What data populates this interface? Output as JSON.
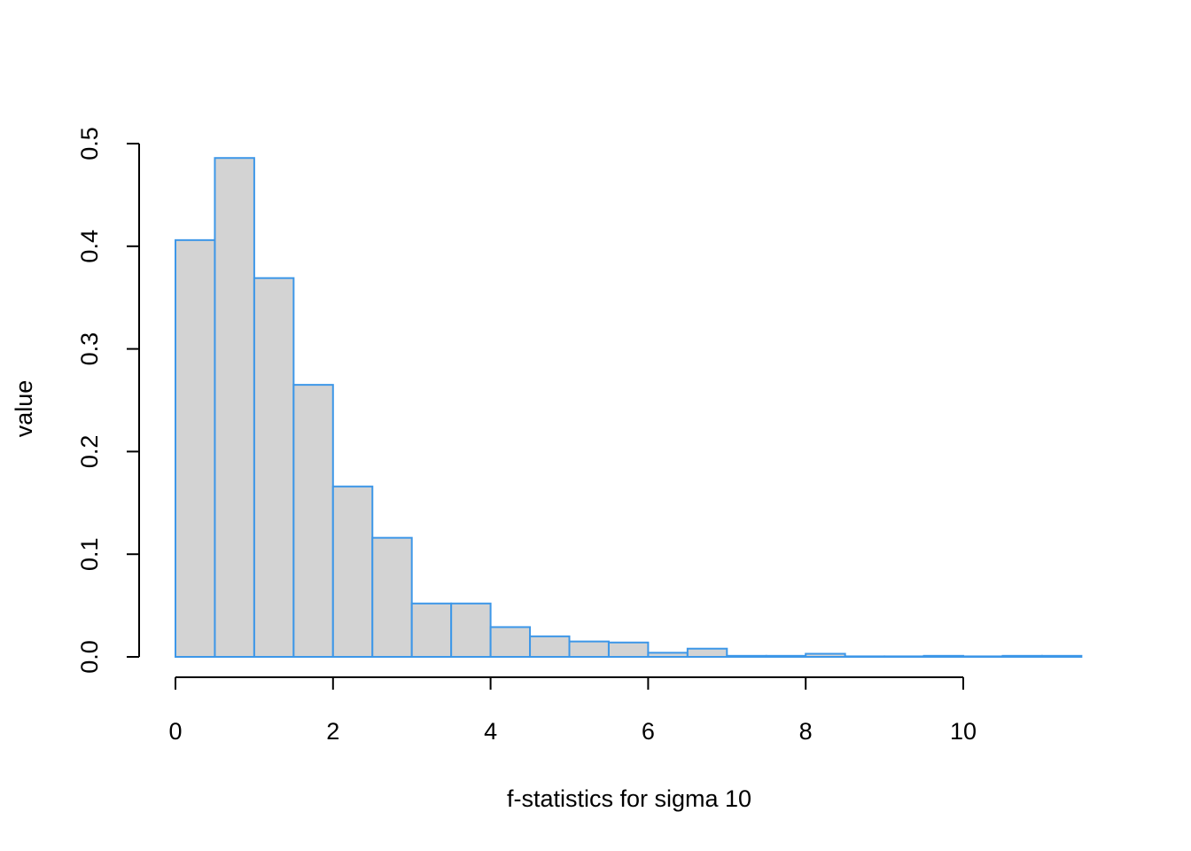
{
  "chart_data": {
    "type": "bar",
    "title": "",
    "xlabel": "f-statistics for sigma 10",
    "ylabel": "value",
    "bin_width": 0.5,
    "bin_starts": [
      0,
      0.5,
      1,
      1.5,
      2,
      2.5,
      3,
      3.5,
      4,
      4.5,
      5,
      5.5,
      6,
      6.5,
      7,
      7.5,
      8,
      8.5,
      9,
      9.5,
      10,
      10.5,
      11
    ],
    "values": [
      0.406,
      0.486,
      0.369,
      0.265,
      0.166,
      0.116,
      0.052,
      0.052,
      0.029,
      0.02,
      0.015,
      0.014,
      0.004,
      0.008,
      0.001,
      0.001,
      0.003,
      0.0005,
      0.0005,
      0.001,
      0.0005,
      0.001,
      0.001
    ],
    "xlim": [
      0,
      11.5
    ],
    "ylim": [
      0,
      0.5
    ],
    "xticks": [
      "0",
      "2",
      "4",
      "6",
      "8",
      "10"
    ],
    "yticks": [
      "0.0",
      "0.1",
      "0.2",
      "0.3",
      "0.4",
      "0.5"
    ],
    "grid": false,
    "legend": "none",
    "colors": {
      "bar_fill": "#d3d3d3",
      "bar_border": "#3d97e8",
      "axis": "#000000"
    }
  }
}
